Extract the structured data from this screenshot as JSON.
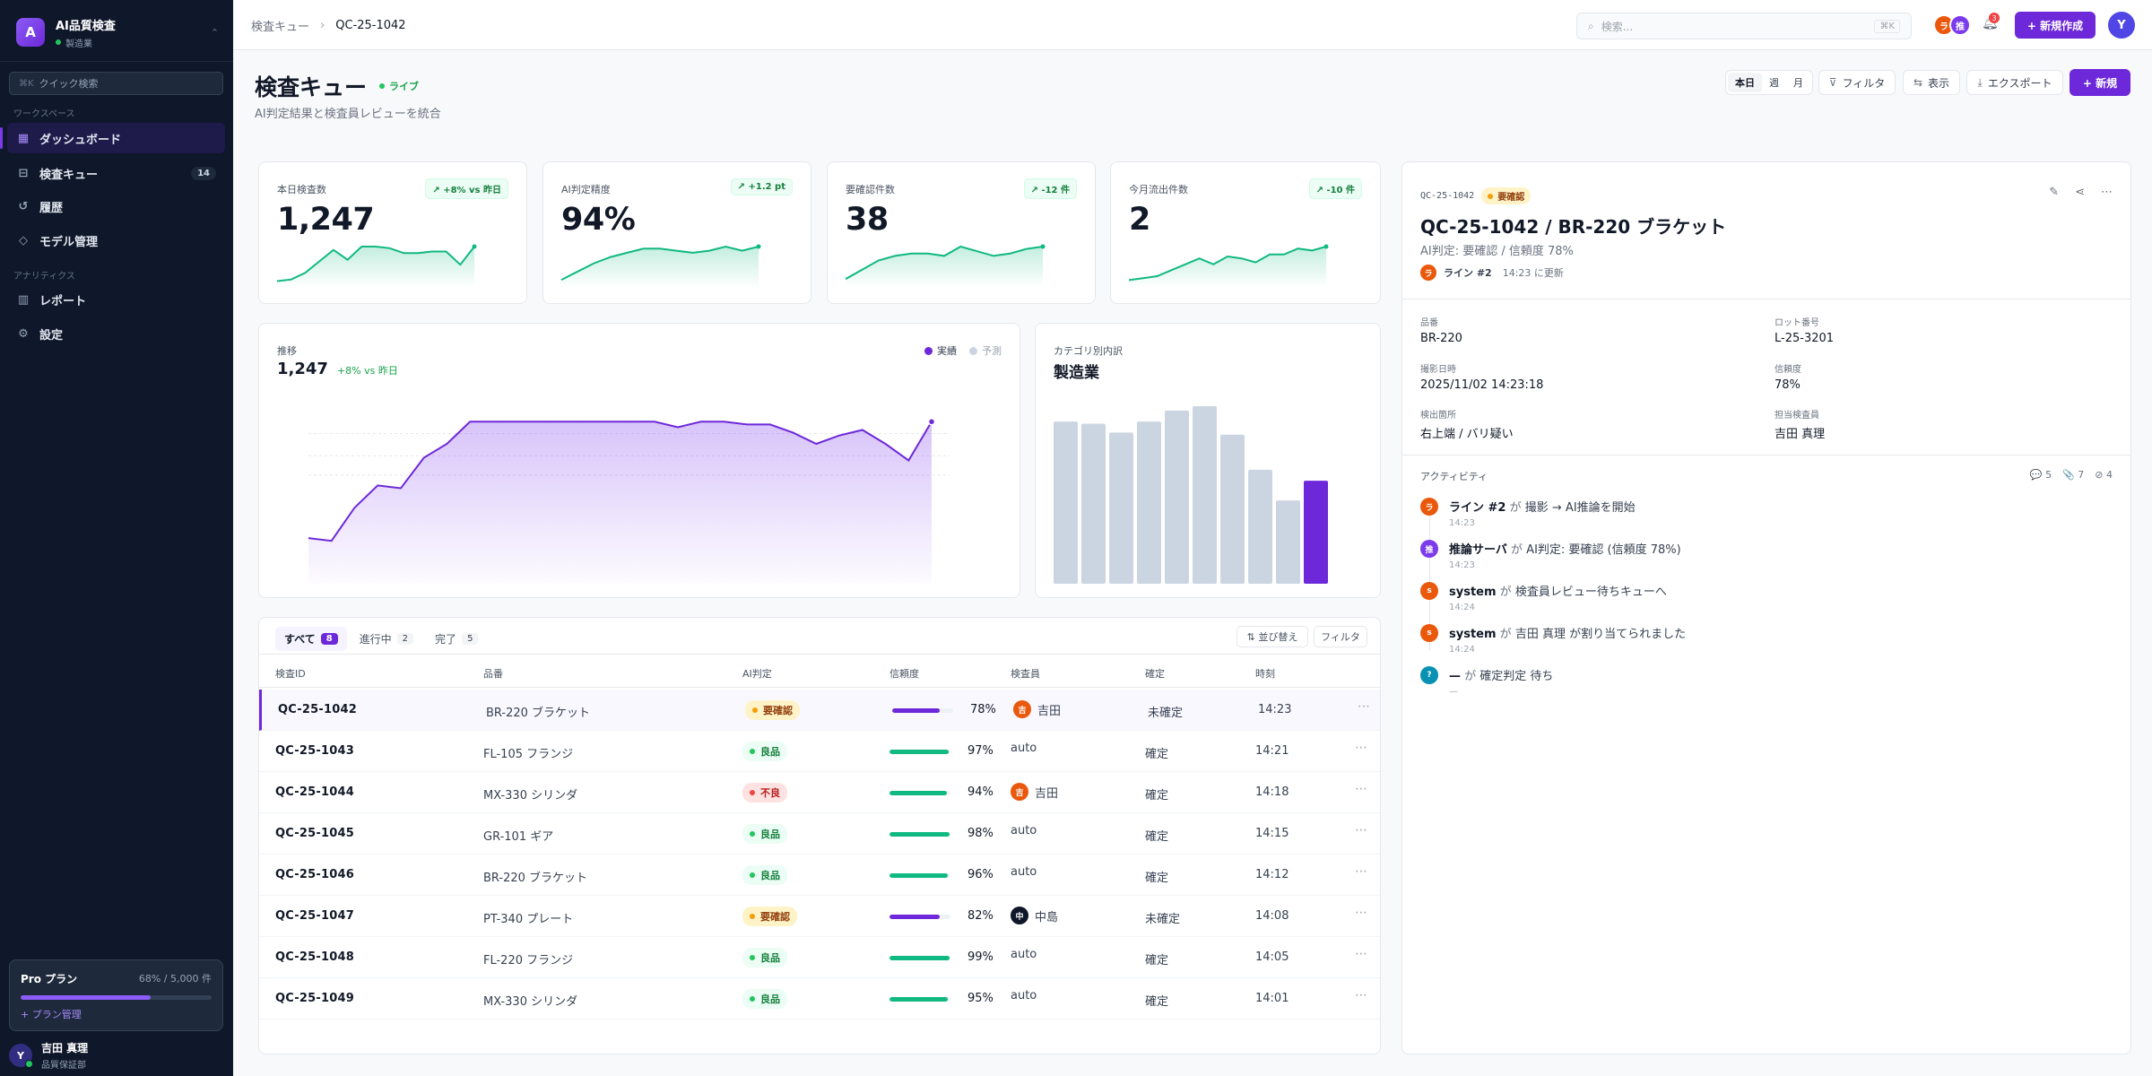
{
  "sidebar": {
    "brand_initial": "A",
    "brand_name": "AI品質検査",
    "brand_sub": "製造業",
    "quick_search": {
      "shortcut": "⌘K",
      "placeholder": "クイック検索"
    },
    "section_workspace": "ワークスペース",
    "section_analytics": "アナリティクス",
    "items": [
      {
        "label": "ダッシュボード",
        "icon": "grid-icon",
        "active": true
      },
      {
        "label": "検査キュー",
        "icon": "inbox-icon",
        "count": "14"
      },
      {
        "label": "履歴",
        "icon": "history-icon"
      },
      {
        "label": "モデル管理",
        "icon": "cube-icon"
      },
      {
        "label": "レポート",
        "icon": "bar-chart-icon"
      },
      {
        "label": "設定",
        "icon": "gear-icon"
      }
    ],
    "plan": {
      "name": "Pro プラン",
      "usage": "68% / 5,000 件",
      "usage_fraction": 0.68,
      "link": "+ プラン管理"
    },
    "user": {
      "initial": "Y",
      "name": "吉田 真理",
      "role": "品質保証部"
    }
  },
  "topbar": {
    "breadcrumb": [
      "検査キュー",
      "QC-25-1042"
    ],
    "search_placeholder": "検索...",
    "search_shortcut": "⌘K",
    "avatars": [
      {
        "initial": "ラ",
        "color": "#ea580c"
      },
      {
        "initial": "推",
        "color": "#7c3aed"
      }
    ],
    "notifications": "3",
    "new_button": "+ 新規作成",
    "user_initial": "Y"
  },
  "page": {
    "title": "検査キュー",
    "live": "ライブ",
    "subtitle": "AI判定結果と検査員レビューを統合",
    "periods": [
      "本日",
      "週",
      "月"
    ],
    "filter": "フィルタ",
    "view": "表示",
    "export": "エクスポート",
    "new": "+ 新規"
  },
  "kpis": [
    {
      "label": "本日検査数",
      "value": "1,247",
      "delta": "↗ +8% vs 昨日",
      "spark": [
        3,
        4,
        8,
        15,
        22,
        16,
        24,
        24,
        23,
        20,
        20,
        21,
        21,
        13,
        24
      ]
    },
    {
      "label": "AI判定精度",
      "value": "94%",
      "delta": "↗ +1.2 pt",
      "spark": [
        3,
        7,
        11,
        14,
        16,
        18,
        18,
        17,
        16,
        17,
        19,
        17,
        19
      ]
    },
    {
      "label": "要確認件数",
      "value": "38",
      "delta": "↗ -12 件",
      "spark": [
        3,
        7,
        11,
        13,
        14,
        14,
        13,
        17,
        15,
        13,
        14,
        16,
        17
      ]
    },
    {
      "label": "今月流出件数",
      "value": "2",
      "delta": "↗ -10 件",
      "spark": [
        3,
        4,
        5,
        8,
        11,
        14,
        11,
        15,
        14,
        12,
        16,
        16,
        19,
        18,
        20
      ]
    }
  ],
  "chart_data": [
    {
      "type": "area",
      "label": "推移",
      "value": "1,247",
      "delta": "+8% vs 昨日",
      "legend": [
        {
          "name": "実績",
          "color": "#6d28d9"
        },
        {
          "name": "予測",
          "color": "#cbd5e1"
        }
      ],
      "series": [
        {
          "name": "実績",
          "values": [
            20,
            19,
            31,
            39,
            38,
            49,
            54,
            62,
            62,
            62,
            62,
            62,
            62,
            62,
            62,
            62,
            60,
            62,
            62,
            61,
            61,
            58,
            54,
            57,
            59,
            54,
            48,
            62
          ]
        }
      ]
    },
    {
      "type": "bar",
      "label": "カテゴリ別内訳",
      "title": "製造業",
      "values": [
        74,
        73,
        69,
        74,
        79,
        81,
        68,
        52,
        38,
        47
      ],
      "highlight_index": 9
    }
  ],
  "table": {
    "tabs": [
      {
        "label": "すべて",
        "count": "8",
        "active": true
      },
      {
        "label": "進行中",
        "count": "2"
      },
      {
        "label": "完了",
        "count": "5"
      }
    ],
    "sort_button": "⇅ 並び替え",
    "filter_button": "フィルタ",
    "columns": [
      "検査ID",
      "品番",
      "AI判定",
      "信頼度",
      "検査員",
      "確定",
      "時刻"
    ],
    "rows": [
      {
        "id": "QC-25-1042",
        "item": "BR-220 ブラケット",
        "ai": "要確認",
        "ai_kind": "warn",
        "conf": "78%",
        "conf_v": 0.78,
        "inspector": "吉田",
        "insp_av": "吉",
        "insp_color": "#ea580c",
        "confirm": "未確定",
        "time": "14:23",
        "selected": true
      },
      {
        "id": "QC-25-1043",
        "item": "FL-105 フランジ",
        "ai": "良品",
        "ai_kind": "ok",
        "conf": "97%",
        "conf_v": 0.97,
        "inspector": "auto",
        "confirm": "確定",
        "time": "14:21"
      },
      {
        "id": "QC-25-1044",
        "item": "MX-330 シリンダ",
        "ai": "不良",
        "ai_kind": "ng",
        "conf": "94%",
        "conf_v": 0.94,
        "inspector": "吉田",
        "insp_av": "吉",
        "insp_color": "#ea580c",
        "confirm": "確定",
        "time": "14:18"
      },
      {
        "id": "QC-25-1045",
        "item": "GR-101 ギア",
        "ai": "良品",
        "ai_kind": "ok",
        "conf": "98%",
        "conf_v": 0.98,
        "inspector": "auto",
        "confirm": "確定",
        "time": "14:15"
      },
      {
        "id": "QC-25-1046",
        "item": "BR-220 ブラケット",
        "ai": "良品",
        "ai_kind": "ok",
        "conf": "96%",
        "conf_v": 0.96,
        "inspector": "auto",
        "confirm": "確定",
        "time": "14:12"
      },
      {
        "id": "QC-25-1047",
        "item": "PT-340 プレート",
        "ai": "要確認",
        "ai_kind": "warn",
        "conf": "82%",
        "conf_v": 0.82,
        "inspector": "中島",
        "insp_av": "中",
        "insp_color": "#0f172a",
        "confirm": "未確定",
        "time": "14:08"
      },
      {
        "id": "QC-25-1048",
        "item": "FL-220 フランジ",
        "ai": "良品",
        "ai_kind": "ok",
        "conf": "99%",
        "conf_v": 0.99,
        "inspector": "auto",
        "confirm": "確定",
        "time": "14:05"
      },
      {
        "id": "QC-25-1049",
        "item": "MX-330 シリンダ",
        "ai": "良品",
        "ai_kind": "ok",
        "conf": "95%",
        "conf_v": 0.95,
        "inspector": "auto",
        "confirm": "確定",
        "time": "14:01"
      }
    ]
  },
  "detail": {
    "id": "QC-25-1042",
    "badge": "要確認",
    "title": "QC-25-1042 / BR-220 ブラケット",
    "subtitle": "AI判定: 要確認 / 信頼度 78%",
    "line_avatar": "ラ",
    "line": "ライン #2",
    "updated": "14:23 に更新",
    "fields": [
      {
        "label": "品番",
        "value": "BR-220"
      },
      {
        "label": "ロット番号",
        "value": "L-25-3201"
      },
      {
        "label": "撮影日時",
        "value": "2025/11/02 14:23:18"
      },
      {
        "label": "信頼度",
        "value": "78%"
      },
      {
        "label": "検出箇所",
        "value": "右上端 / バリ疑い"
      },
      {
        "label": "担当検査員",
        "value": "吉田 真理"
      }
    ],
    "activity_title": "アクティビティ",
    "activity_counts": [
      "💬 5",
      "📎 7",
      "⊘ 4"
    ],
    "activity": [
      {
        "av": "ラ",
        "color": "#ea580c",
        "actor": "ライン #2",
        "verb": "が",
        "text": "撮影 → AI推論を開始",
        "time": "14:23"
      },
      {
        "av": "推",
        "color": "#7c3aed",
        "actor": "推論サーバ",
        "verb": "が",
        "text": "AI判定: 要確認 (信頼度 78%)",
        "time": "14:23"
      },
      {
        "av": "s",
        "color": "#ea580c",
        "actor": "system",
        "verb": "が",
        "text": "検査員レビュー待ちキューへ",
        "time": "14:24"
      },
      {
        "av": "s",
        "color": "#ea580c",
        "actor": "system",
        "verb": "が",
        "text": "吉田 真理 が割り当てられました",
        "time": "14:24"
      },
      {
        "av": "?",
        "color": "#0891b2",
        "actor": "—",
        "verb": "が",
        "text": "確定判定 待ち",
        "time": "—"
      }
    ]
  }
}
